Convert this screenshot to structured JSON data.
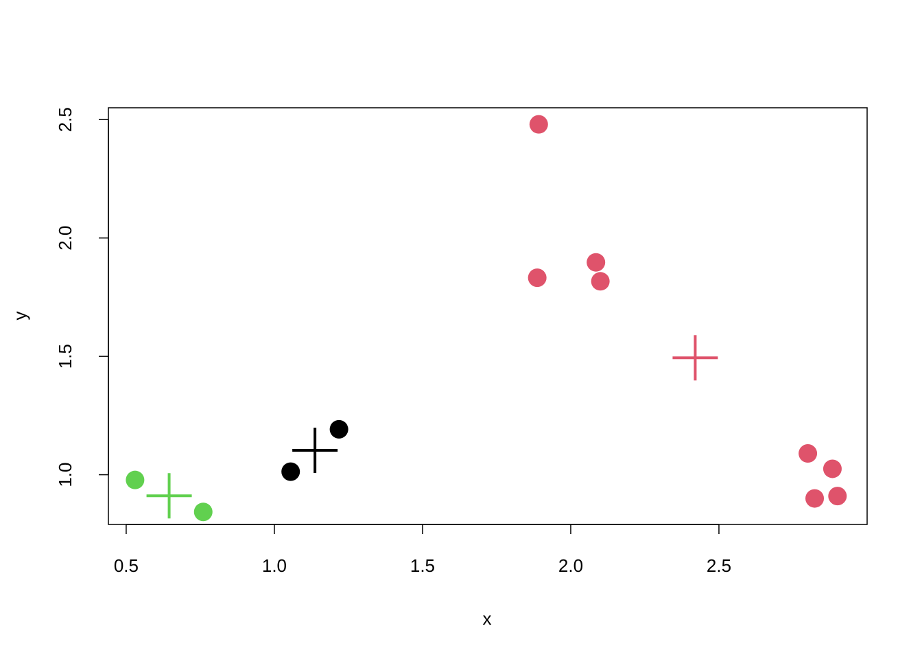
{
  "chart_data": {
    "type": "scatter",
    "xlabel": "x",
    "ylabel": "y",
    "xlim": [
      0.44,
      3.0
    ],
    "ylim": [
      0.79,
      2.55
    ],
    "x_ticks": [
      0.5,
      1.0,
      1.5,
      2.0,
      2.5
    ],
    "x_tick_labels": [
      "0.5",
      "1.0",
      "1.5",
      "2.0",
      "2.5"
    ],
    "y_ticks": [
      1.0,
      1.5,
      2.0,
      2.5
    ],
    "y_tick_labels": [
      "1.0",
      "1.5",
      "2.0",
      "2.5"
    ],
    "grid": false,
    "clusters": [
      {
        "color": "#000000",
        "points": [
          {
            "x": 1.055,
            "y": 1.013
          },
          {
            "x": 1.218,
            "y": 1.192
          }
        ],
        "center": {
          "x": 1.137,
          "y": 1.103
        }
      },
      {
        "color": "#DF536B",
        "points": [
          {
            "x": 1.892,
            "y": 2.48
          },
          {
            "x": 1.887,
            "y": 1.832
          },
          {
            "x": 2.085,
            "y": 1.897
          },
          {
            "x": 2.1,
            "y": 1.817
          },
          {
            "x": 2.8,
            "y": 1.09
          },
          {
            "x": 2.883,
            "y": 1.025
          },
          {
            "x": 2.823,
            "y": 0.9
          },
          {
            "x": 2.9,
            "y": 0.91
          }
        ],
        "center": {
          "x": 2.42,
          "y": 1.494
        }
      },
      {
        "color": "#61D04F",
        "points": [
          {
            "x": 0.53,
            "y": 0.978
          },
          {
            "x": 0.76,
            "y": 0.843
          }
        ],
        "center": {
          "x": 0.645,
          "y": 0.911
        }
      }
    ]
  }
}
